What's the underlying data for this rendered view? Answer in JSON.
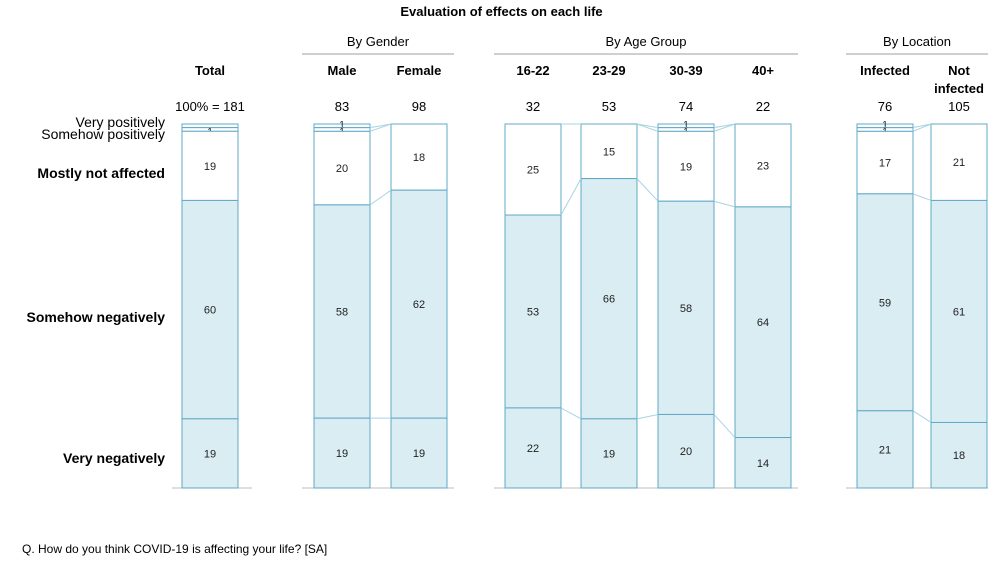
{
  "title": "Evaluation of effects on each life",
  "footnote": "Q. How do you think COVID-19 is affecting your life? [SA]",
  "colors": {
    "fill_negative": "#daedf3",
    "fill_positive": "#ffffff",
    "outline": "#5fa8c6",
    "connector": "#a9d3e2",
    "group_line": "#bfbfbf"
  },
  "chart_data": {
    "type": "bar",
    "stacked": true,
    "normalized_percent": true,
    "categories_order_top_to_bottom": [
      "Very positively",
      "Somehow positively",
      "Mostly not affected",
      "Somehow negatively",
      "Very negatively"
    ],
    "category_labels": [
      {
        "key": "very_positively",
        "text": "Very positively",
        "style": "normal"
      },
      {
        "key": "somehow_positively",
        "text": "Somehow positively",
        "style": "normal"
      },
      {
        "key": "mostly_not_affected",
        "text": "Mostly not affected",
        "style": "bold"
      },
      {
        "key": "somehow_negatively",
        "text": "Somehow negatively",
        "style": "bold"
      },
      {
        "key": "very_negatively",
        "text": "Very negatively",
        "style": "bold"
      }
    ],
    "groups": [
      {
        "name": "",
        "columns": [
          {
            "name": "Total",
            "n": "100% = 181",
            "values": [
              1,
              1,
              19,
              60,
              19
            ],
            "labels": [
              "",
              "1",
              "19",
              "60",
              "19"
            ]
          }
        ]
      },
      {
        "name": "By Gender",
        "columns": [
          {
            "name": "Male",
            "n": "83",
            "values": [
              1,
              1,
              20,
              58,
              19
            ],
            "labels": [
              "1",
              "1",
              "20",
              "58",
              "19"
            ]
          },
          {
            "name": "Female",
            "n": "98",
            "values": [
              0,
              0,
              18,
              62,
              19
            ],
            "labels": [
              "-",
              "",
              "18",
              "62",
              "19"
            ]
          }
        ]
      },
      {
        "name": "By Age Group",
        "columns": [
          {
            "name": "16-22",
            "n": "32",
            "values": [
              0,
              0,
              25,
              53,
              22
            ],
            "labels": [
              "-",
              "",
              "25",
              "53",
              "22"
            ]
          },
          {
            "name": "23-29",
            "n": "53",
            "values": [
              0,
              0,
              15,
              66,
              19
            ],
            "labels": [
              "-",
              "",
              "15",
              "66",
              "19"
            ]
          },
          {
            "name": "30-39",
            "n": "74",
            "values": [
              1,
              1,
              19,
              58,
              20
            ],
            "labels": [
              "1",
              "1",
              "19",
              "58",
              "20"
            ]
          },
          {
            "name": "40+",
            "n": "22",
            "values": [
              0,
              0,
              23,
              64,
              14
            ],
            "labels": [
              "-",
              "",
              "23",
              "64",
              "14"
            ]
          }
        ]
      },
      {
        "name": "By Location",
        "columns": [
          {
            "name": "Infected",
            "n": "76",
            "values": [
              1,
              1,
              17,
              59,
              21
            ],
            "labels": [
              "1",
              "1",
              "17",
              "59",
              "21"
            ]
          },
          {
            "name": "Not infected",
            "n": "105",
            "values": [
              0,
              0,
              21,
              61,
              18
            ],
            "labels": [
              "-",
              "",
              "21",
              "61",
              "18"
            ]
          }
        ]
      }
    ]
  }
}
